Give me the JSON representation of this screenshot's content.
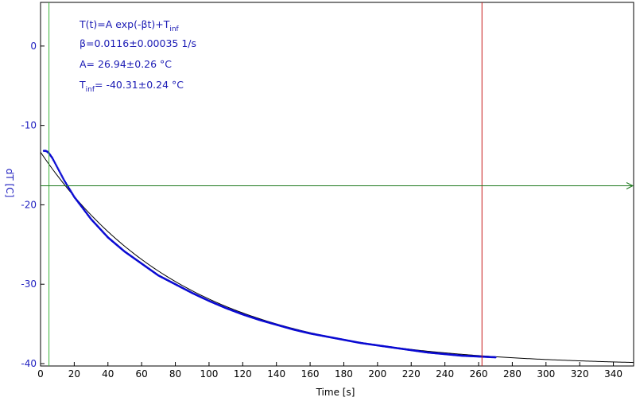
{
  "chart_data": {
    "type": "scatter",
    "xlabel": "Time [s]",
    "ylabel": "dT [C]",
    "xlim": [
      0,
      352
    ],
    "ylim": [
      -40.3,
      5.5
    ],
    "x_ticks": [
      0,
      20,
      40,
      60,
      80,
      100,
      120,
      140,
      160,
      180,
      200,
      220,
      240,
      260,
      280,
      300,
      320,
      340
    ],
    "y_ticks": [
      0,
      -10,
      -20,
      -30,
      -40
    ],
    "grid": false,
    "annotation": {
      "formula": [
        "T(t)=A exp(-βt)+T",
        "inf"
      ],
      "beta": "β=0.0116±0.00035 1/s",
      "A": "A= 26.94±0.26 °C",
      "Tinf": [
        "T",
        "inf",
        "= -40.31±0.24 °C"
      ]
    },
    "fit": {
      "A": 26.94,
      "beta": 0.0116,
      "T_inf": -40.31,
      "x_range": [
        0,
        352
      ]
    },
    "data_series": {
      "x_start": 2,
      "x_end": 270,
      "points": [
        [
          2,
          -13.2
        ],
        [
          3,
          -13.2
        ],
        [
          4,
          -13.3
        ],
        [
          5,
          -13.5
        ],
        [
          6,
          -13.8
        ],
        [
          7,
          -14.1
        ],
        [
          8,
          -14.5
        ],
        [
          10,
          -15.3
        ],
        [
          12,
          -16.1
        ],
        [
          14,
          -16.9
        ],
        [
          16,
          -17.6
        ],
        [
          18,
          -18.3
        ],
        [
          20,
          -19.0
        ],
        [
          30,
          -21.8
        ],
        [
          40,
          -24.1
        ],
        [
          50,
          -25.9
        ],
        [
          60,
          -27.4
        ],
        [
          70,
          -28.9
        ],
        [
          80,
          -30.0
        ],
        [
          90,
          -31.1
        ],
        [
          100,
          -32.1
        ],
        [
          110,
          -33.0
        ],
        [
          120,
          -33.8
        ],
        [
          130,
          -34.5
        ],
        [
          140,
          -35.1
        ],
        [
          150,
          -35.7
        ],
        [
          160,
          -36.2
        ],
        [
          170,
          -36.6
        ],
        [
          180,
          -37.0
        ],
        [
          190,
          -37.4
        ],
        [
          200,
          -37.7
        ],
        [
          210,
          -38.0
        ],
        [
          220,
          -38.3
        ],
        [
          230,
          -38.6
        ],
        [
          240,
          -38.8
        ],
        [
          250,
          -39.0
        ],
        [
          260,
          -39.1
        ],
        [
          270,
          -39.2
        ]
      ]
    },
    "cursors": {
      "green_vertical_x": 5,
      "green_horizontal_y": -17.6,
      "red_vertical_x": 262
    },
    "colors": {
      "data": "#0a0ad2",
      "fit": "#000000",
      "green_cursor": "#3cb43c",
      "horizontal_cursor": "#1e781e",
      "red_cursor": "#c81e1e",
      "axis_text": "#2020c0"
    }
  }
}
